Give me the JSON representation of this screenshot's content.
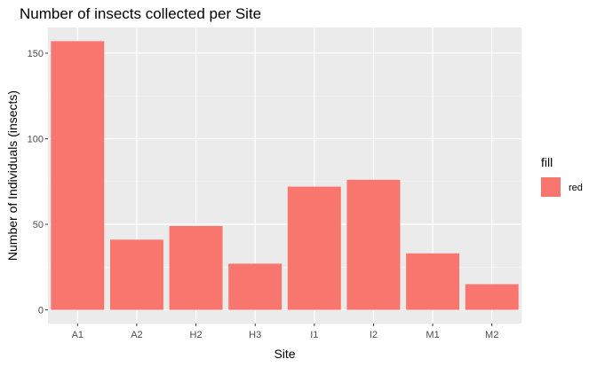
{
  "chart_data": {
    "type": "bar",
    "title": "Number of insects collected per Site",
    "xlabel": "Site",
    "ylabel": "Number of Individuals (insects)",
    "categories": [
      "A1",
      "A2",
      "H2",
      "H3",
      "I1",
      "I2",
      "M1",
      "M2"
    ],
    "values": [
      157,
      41,
      49,
      27,
      72,
      76,
      33,
      15
    ],
    "ylim": [
      -8,
      165
    ],
    "yticks": [
      0,
      50,
      100,
      150
    ],
    "grid": true,
    "legend": {
      "title": "fill",
      "entries": [
        {
          "label": "red",
          "color": "#F8766D"
        }
      ],
      "position": "right"
    },
    "colors": {
      "bar": "#F8766D",
      "panel": "#EBEBEB",
      "grid_major": "#FFFFFF",
      "grid_minor": "#F5F5F5"
    }
  }
}
